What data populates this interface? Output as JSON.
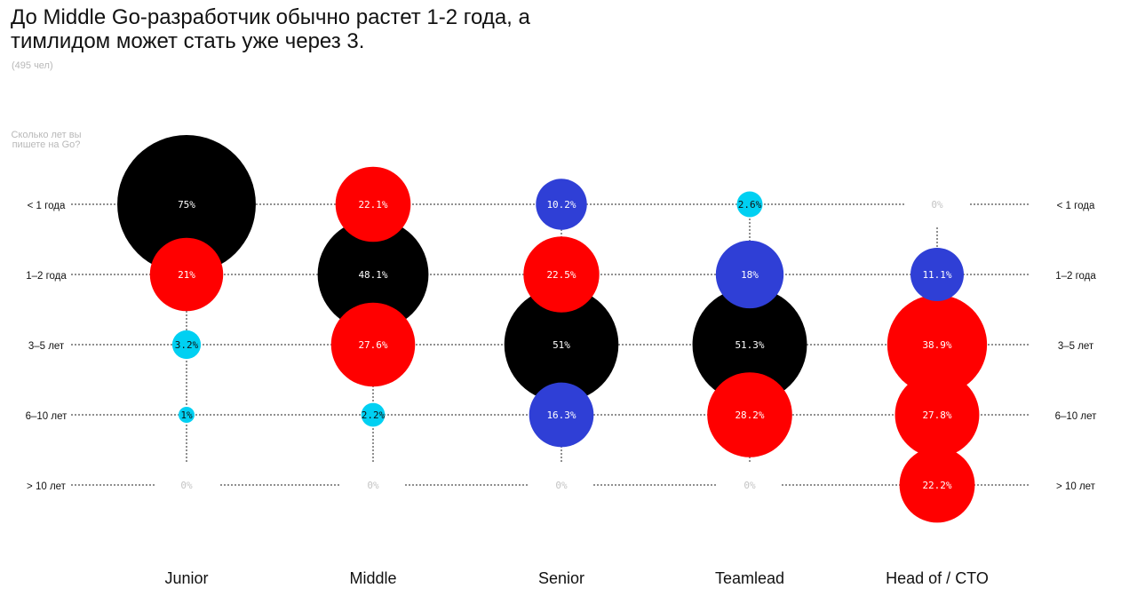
{
  "header": {
    "title": "До Middle Go-разработчик обычно растет 1-2 года, а тимлидом может стать уже через 3.",
    "subtitle": "(495 чел)",
    "question": "Сколько лет вы пишете на Go?"
  },
  "colors": {
    "black": "#000000",
    "red": "#ff0000",
    "blue": "#2f3fd6",
    "cyan": "#00d0f2",
    "zero_label": "#c4c4c4"
  },
  "chart_data": {
    "type": "bubble-matrix",
    "title": "До Middle Go-разработчик обычно растет 1-2 года, а тимлидом может стать уже через 3.",
    "subtitle": "(495 чел)",
    "y_question": "Сколько лет вы пишете на Go?",
    "rows": [
      "< 1 года",
      "1–2 года",
      "3–5 лет",
      "6–10 лет",
      "> 10 лет"
    ],
    "columns": [
      "Junior",
      "Middle",
      "Senior",
      "Teamlead",
      "Head of / CTO"
    ],
    "series": [
      {
        "name": "Junior",
        "values": [
          75,
          21,
          3.2,
          1,
          0
        ],
        "labels": [
          "75%",
          "21%",
          "3.2%",
          "1%",
          "0%"
        ],
        "colors": [
          "black",
          "red",
          "cyan",
          "cyan",
          "none"
        ]
      },
      {
        "name": "Middle",
        "values": [
          22.1,
          48.1,
          27.6,
          2.2,
          0
        ],
        "labels": [
          "22.1%",
          "48.1%",
          "27.6%",
          "2.2%",
          "0%"
        ],
        "colors": [
          "red",
          "black",
          "red",
          "cyan",
          "none"
        ]
      },
      {
        "name": "Senior",
        "values": [
          10.2,
          22.5,
          51,
          16.3,
          0
        ],
        "labels": [
          "10.2%",
          "22.5%",
          "51%",
          "16.3%",
          "0%"
        ],
        "colors": [
          "blue",
          "red",
          "black",
          "blue",
          "none"
        ]
      },
      {
        "name": "Teamlead",
        "values": [
          2.6,
          18,
          51.3,
          28.2,
          0
        ],
        "labels": [
          "2.6%",
          "18%",
          "51.3%",
          "28.2%",
          "0%"
        ],
        "colors": [
          "cyan",
          "blue",
          "black",
          "red",
          "none"
        ]
      },
      {
        "name": "Head of / CTO",
        "values": [
          0,
          11.1,
          38.9,
          27.8,
          22.2
        ],
        "labels": [
          "0%",
          "11.1%",
          "38.9%",
          "27.8%",
          "22.2%"
        ],
        "colors": [
          "none",
          "blue",
          "red",
          "red",
          "red"
        ]
      }
    ]
  }
}
